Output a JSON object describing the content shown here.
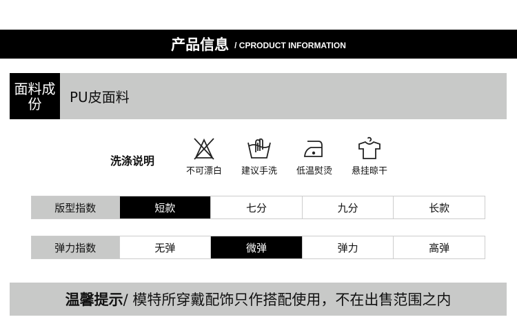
{
  "header": {
    "title": "产品信息",
    "subtitle": "/ CPRODUCT INFORMATION"
  },
  "fabric": {
    "label": "面料成份",
    "value": "PU皮面料"
  },
  "washing": {
    "label": "洗涤说明",
    "items": [
      {
        "icon": "no-bleach-icon",
        "label": "不可漂白"
      },
      {
        "icon": "hand-wash-icon",
        "label": "建议手洗"
      },
      {
        "icon": "low-iron-icon",
        "label": "低温熨烫"
      },
      {
        "icon": "hang-dry-icon",
        "label": "悬挂晾干"
      }
    ]
  },
  "fit": {
    "label": "版型指数",
    "options": [
      "短款",
      "七分",
      "九分",
      "长款"
    ],
    "selected": "短款"
  },
  "elasticity": {
    "label": "弹力指数",
    "options": [
      "无弹",
      "微弹",
      "弹力",
      "高弹"
    ],
    "selected": "微弹"
  },
  "tip": {
    "title": "温馨提示",
    "text": "/ 模特所穿戴配饰只作搭配使用，不在出售范围之内"
  }
}
